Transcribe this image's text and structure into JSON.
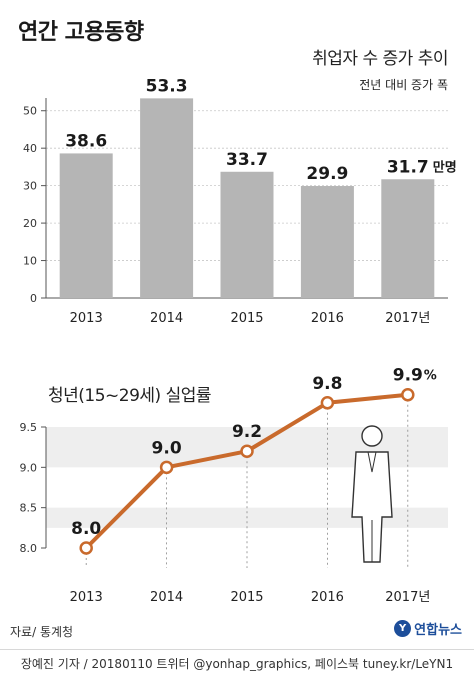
{
  "title": "연간 고용동향",
  "colors": {
    "bar": "#b5b5b5",
    "line": "#c96a2c",
    "band": "#eeeeee",
    "axis": "#555555"
  },
  "chart_data": [
    {
      "type": "bar",
      "title": "취업자 수 증가 추이",
      "subtitle": "전년 대비 증가 폭",
      "categories": [
        "2013",
        "2014",
        "2015",
        "2016",
        "2017년"
      ],
      "values": [
        38.6,
        53.3,
        33.7,
        29.9,
        31.7
      ],
      "value_labels": [
        "38.6",
        "53.3",
        "33.7",
        "29.9",
        "31.7"
      ],
      "unit": "만명",
      "yticks": [
        "0",
        "10",
        "20",
        "30",
        "40",
        "50"
      ],
      "ylim": [
        0,
        55
      ],
      "grid": true
    },
    {
      "type": "line",
      "title": "청년(15~29세) 실업률",
      "categories": [
        "2013",
        "2014",
        "2015",
        "2016",
        "2017년"
      ],
      "values": [
        8.0,
        9.0,
        9.2,
        9.8,
        9.9
      ],
      "value_labels": [
        "8.0",
        "9.0",
        "9.2",
        "9.8",
        "9.9"
      ],
      "unit": "%",
      "yticks": [
        "8.0",
        "8.5",
        "9.0",
        "9.5"
      ],
      "ylim": [
        8.0,
        9.5
      ],
      "grid": true
    }
  ],
  "footer": {
    "source": "자료/ 통계청",
    "logo": "연합뉴스",
    "logo_mark": "Y",
    "credit": "장예진 기자 / 20180110 트위터 @yonhap_graphics, 페이스북 tuney.kr/LeYN1"
  }
}
